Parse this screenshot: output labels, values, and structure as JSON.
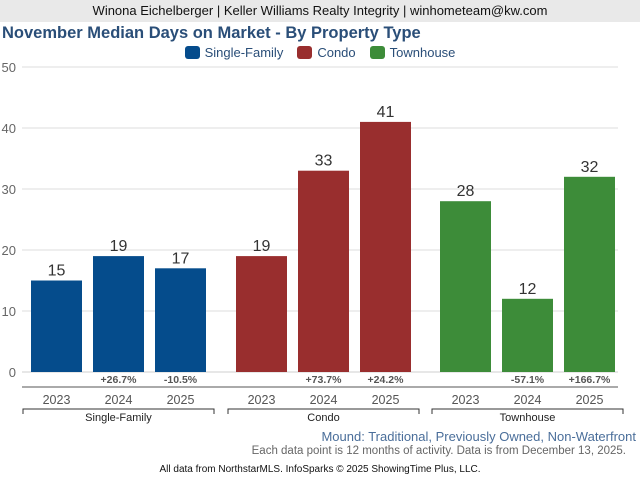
{
  "header": {
    "text": "Winona Eichelberger | Keller Williams Realty Integrity | winhometeam@kw.com"
  },
  "chart_data": {
    "type": "bar",
    "title": "November Median Days on Market - By Property Type",
    "xlabel": "",
    "ylabel": "",
    "ylim": [
      0,
      50
    ],
    "yticks": [
      0,
      10,
      20,
      30,
      40,
      50
    ],
    "grid": true,
    "legend_position": "top-center",
    "legend": [
      {
        "name": "Single-Family",
        "color": "#054c8c"
      },
      {
        "name": "Condo",
        "color": "#992e2e"
      },
      {
        "name": "Townhouse",
        "color": "#3d8c39"
      }
    ],
    "groups": [
      {
        "name": "Single-Family",
        "color": "#054c8c",
        "categories": [
          "2023",
          "2024",
          "2025"
        ],
        "values": [
          15,
          19,
          17
        ],
        "changes": [
          "",
          "+26.7%",
          "-10.5%"
        ]
      },
      {
        "name": "Condo",
        "color": "#992e2e",
        "categories": [
          "2023",
          "2024",
          "2025"
        ],
        "values": [
          19,
          33,
          41
        ],
        "changes": [
          "",
          "+73.7%",
          "+24.2%"
        ]
      },
      {
        "name": "Townhouse",
        "color": "#3d8c39",
        "categories": [
          "2023",
          "2024",
          "2025"
        ],
        "values": [
          28,
          12,
          32
        ],
        "changes": [
          "",
          "-57.1%",
          "+166.7%"
        ]
      }
    ]
  },
  "footer": {
    "filter": "Mound: Traditional, Previously Owned, Non-Waterfront",
    "note": "Each data point is 12 months of activity. Data is from December 13, 2025.",
    "credit": "All data from NorthstarMLS. InfoSparks © 2025 ShowingTime Plus, LLC."
  }
}
